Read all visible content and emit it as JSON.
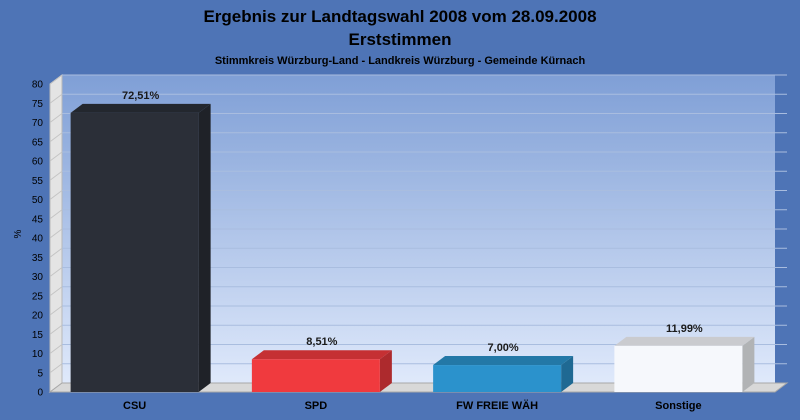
{
  "chart_data": {
    "type": "bar",
    "title": "Ergebnis zur Landtagswahl 2008 vom 28.09.2008",
    "title_line2": "Erststimmen",
    "subtitle": "Stimmkreis Würzburg-Land - Landkreis Würzburg - Gemeinde Kürnach",
    "ylabel": "%",
    "xlabel": "",
    "ylim": [
      0,
      80
    ],
    "yticks": [
      0,
      5,
      10,
      15,
      20,
      25,
      30,
      35,
      40,
      45,
      50,
      55,
      60,
      65,
      70,
      75,
      80
    ],
    "grid": true,
    "categories": [
      "CSU",
      "SPD",
      "FW FREIE WÄH",
      "Sonstige"
    ],
    "values": [
      72.51,
      8.51,
      7.0,
      11.99
    ],
    "value_labels": [
      "72,51%",
      "8,51%",
      "7,00%",
      "11,99%"
    ],
    "colors": [
      "#2b2f38",
      "#f03a3e",
      "#2b92cc",
      "#f6f8fc"
    ],
    "background": "#4e74b6"
  }
}
